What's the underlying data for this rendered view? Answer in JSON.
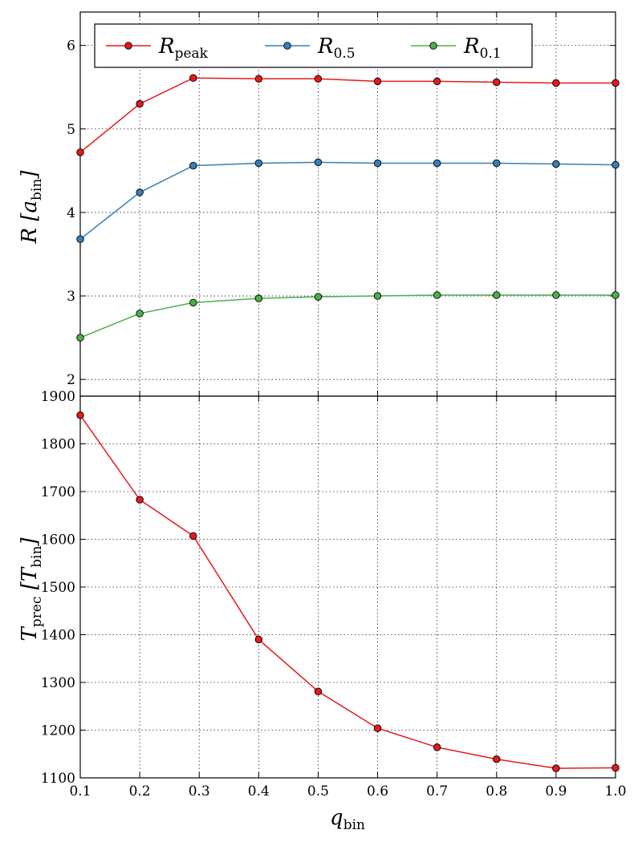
{
  "chart_data": [
    {
      "type": "line",
      "x": [
        0.1,
        0.2,
        0.29,
        0.4,
        0.5,
        0.6,
        0.7,
        0.8,
        0.9,
        1.0
      ],
      "ylabel": "R [a_bin]",
      "ylabel_main": "R [a",
      "ylabel_sub": "bin",
      "ylabel_end": "]",
      "xlim": [
        0.1,
        1.0
      ],
      "ylim": [
        1.8,
        6.4
      ],
      "yticks": [
        2,
        3,
        4,
        5,
        6
      ],
      "grid": true,
      "legend_placement": "top",
      "series": [
        {
          "name": "R_peak",
          "name_main": "R",
          "name_sub": "peak",
          "color": "#e41a1c",
          "values": [
            4.72,
            5.3,
            5.61,
            5.6,
            5.6,
            5.57,
            5.57,
            5.56,
            5.55,
            5.55
          ]
        },
        {
          "name": "R_0.5",
          "name_main": "R",
          "name_sub": "0.5",
          "color": "#377eb8",
          "values": [
            3.68,
            4.24,
            4.56,
            4.59,
            4.6,
            4.59,
            4.59,
            4.59,
            4.58,
            4.57
          ]
        },
        {
          "name": "R_0.1",
          "name_main": "R",
          "name_sub": "0.1",
          "color": "#4daf4a",
          "values": [
            2.5,
            2.79,
            2.92,
            2.97,
            2.99,
            3.0,
            3.01,
            3.01,
            3.01,
            3.01
          ]
        }
      ]
    },
    {
      "type": "line",
      "x": [
        0.1,
        0.2,
        0.29,
        0.4,
        0.5,
        0.6,
        0.7,
        0.8,
        0.9,
        1.0
      ],
      "xlabel": "q_bin",
      "xlabel_main": "q",
      "xlabel_sub": "bin",
      "ylabel": "T_prec [T_bin]",
      "ylabel_main": "T",
      "ylabel_sub": "prec",
      "ylabel_mid": " [T",
      "ylabel_sub2": "bin",
      "ylabel_end": "]",
      "xlim": [
        0.1,
        1.0
      ],
      "xticks": [
        "0.1",
        "0.2",
        "0.3",
        "0.4",
        "0.5",
        "0.6",
        "0.7",
        "0.8",
        "0.9",
        "1.0"
      ],
      "ylim": [
        1100,
        1900
      ],
      "yticks": [
        1100,
        1200,
        1300,
        1400,
        1500,
        1600,
        1700,
        1800,
        1900
      ],
      "grid": true,
      "series": [
        {
          "color": "#e41a1c",
          "values": [
            1860,
            1683,
            1607,
            1390,
            1281,
            1204,
            1164,
            1139,
            1120,
            1121
          ]
        }
      ]
    }
  ]
}
